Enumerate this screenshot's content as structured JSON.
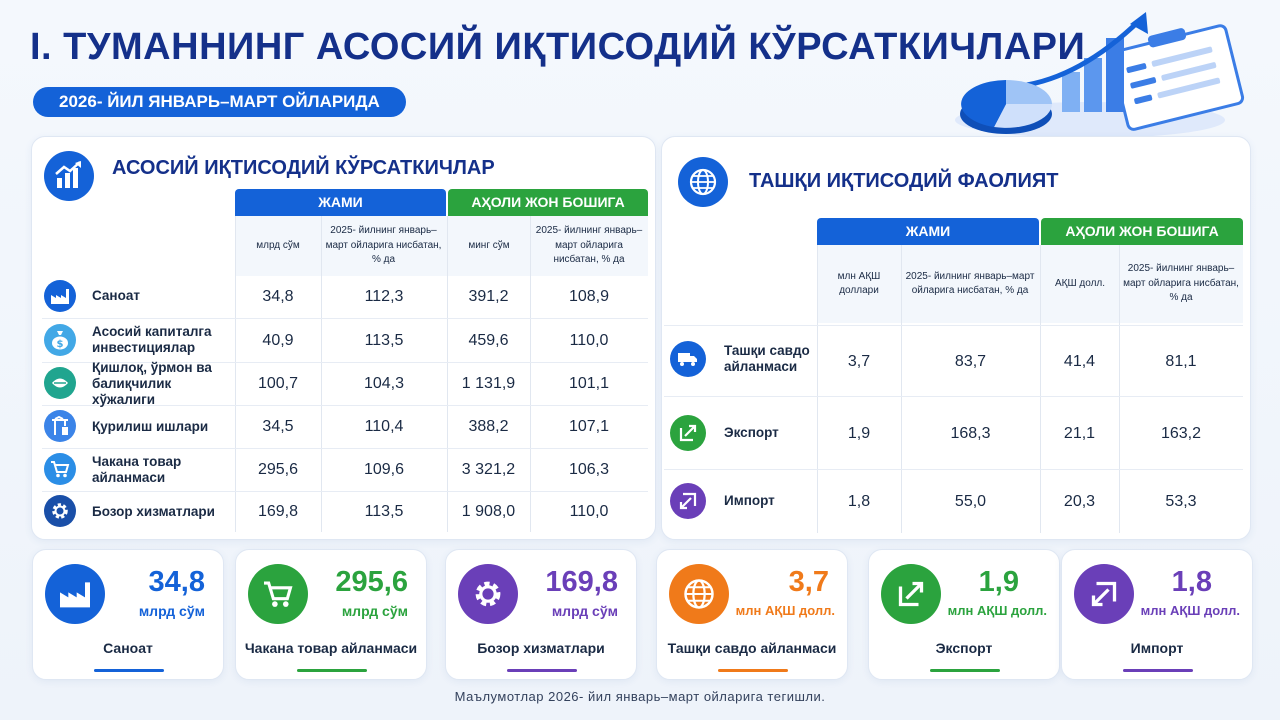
{
  "header": {
    "title": "I. ТУМАННИНГ АСОСИЙ ИҚТИСОДИЙ КЎРСАТКИЧЛАРИ",
    "period": "2026- ЙИЛ ЯНВАРЬ–МАРТ ОЙЛАРИДА"
  },
  "left_panel": {
    "title": "АСОСИЙ ИҚТИСОДИЙ КЎРСАТКИЧЛАР",
    "group_total": "ЖАМИ",
    "group_per_capita": "АҲОЛИ ЖОН БОШИГА",
    "col_total_unit": "млрд сўм",
    "col_total_pct": "2025- йилнинг январь–март ойларига нисбатан, % да",
    "col_pc_unit": "минг сўм",
    "col_pc_pct": "2025- йилнинг январь–март ойларига нисбатан, % да",
    "rows": [
      {
        "label": "Саноат",
        "icon": "factory-icon",
        "total": "34,8",
        "total_pct": "112,3",
        "pc": "391,2",
        "pc_pct": "108,9"
      },
      {
        "label": "Асосий капиталга инвестициялар",
        "icon": "money-bag-icon",
        "total": "40,9",
        "total_pct": "113,5",
        "pc": "459,6",
        "pc_pct": "110,0"
      },
      {
        "label": "Қишлоқ, ўрмон ва балиқчилик хўжалиги",
        "icon": "agriculture-icon",
        "total": "100,7",
        "total_pct": "104,3",
        "pc": "1 131,9",
        "pc_pct": "101,1"
      },
      {
        "label": "Қурилиш ишлари",
        "icon": "construction-crane-icon",
        "total": "34,5",
        "total_pct": "110,4",
        "pc": "388,2",
        "pc_pct": "107,1"
      },
      {
        "label": "Чакана товар айланмаси",
        "icon": "shopping-cart-icon",
        "total": "295,6",
        "total_pct": "109,6",
        "pc": "3 321,2",
        "pc_pct": "106,3"
      },
      {
        "label": "Бозор хизматлари",
        "icon": "gear-icon",
        "total": "169,8",
        "total_pct": "113,5",
        "pc": "1 908,0",
        "pc_pct": "110,0"
      }
    ]
  },
  "right_panel": {
    "title": "ТАШҚИ ИҚТИСОДИЙ ФАОЛИЯТ",
    "group_total": "ЖАМИ",
    "group_per_capita": "АҲОЛИ ЖОН БОШИГА",
    "col_total_unit": "млн АҚШ доллари",
    "col_total_pct": "2025- йилнинг январь–март ойларига нисбатан, % да",
    "col_pc_unit": "АҚШ долл.",
    "col_pc_pct": "2025- йилнинг январь–март ойларига нисбатан, % да",
    "rows": [
      {
        "label": "Ташқи савдо айланмаси",
        "icon": "truck-icon",
        "total": "3,7",
        "total_pct": "83,7",
        "pc": "41,4",
        "pc_pct": "81,1"
      },
      {
        "label": "Экспорт",
        "icon": "export-icon",
        "total": "1,9",
        "total_pct": "168,3",
        "pc": "21,1",
        "pc_pct": "163,2"
      },
      {
        "label": "Импорт",
        "icon": "import-icon",
        "total": "1,8",
        "total_pct": "55,0",
        "pc": "20,3",
        "pc_pct": "53,3"
      }
    ]
  },
  "kpis": [
    {
      "value": "34,8",
      "unit": "млрд сўм",
      "label": "Саноат",
      "color": "#1462d8",
      "icon": "factory-icon"
    },
    {
      "value": "295,6",
      "unit": "млрд сўм",
      "label": "Чакана товар айланмаси",
      "color": "#2ba33e",
      "icon": "shopping-cart-icon"
    },
    {
      "value": "169,8",
      "unit": "млрд сўм",
      "label": "Бозор хизматлари",
      "color": "#6a3fb8",
      "icon": "gear-icon"
    },
    {
      "value": "3,7",
      "unit": "млн АҚШ долл.",
      "label": "Ташқи савдо айланмаси",
      "color": "#f07a1a",
      "icon": "globe-icon"
    },
    {
      "value": "1,9",
      "unit": "млн АҚШ долл.",
      "label": "Экспорт",
      "color": "#2ba33e",
      "icon": "export-icon"
    },
    {
      "value": "1,8",
      "unit": "млн АҚШ долл.",
      "label": "Импорт",
      "color": "#6a3fb8",
      "icon": "import-icon"
    }
  ],
  "footnote": "Маълумотлар 2026- йил январь–март ойларига тегишли."
}
